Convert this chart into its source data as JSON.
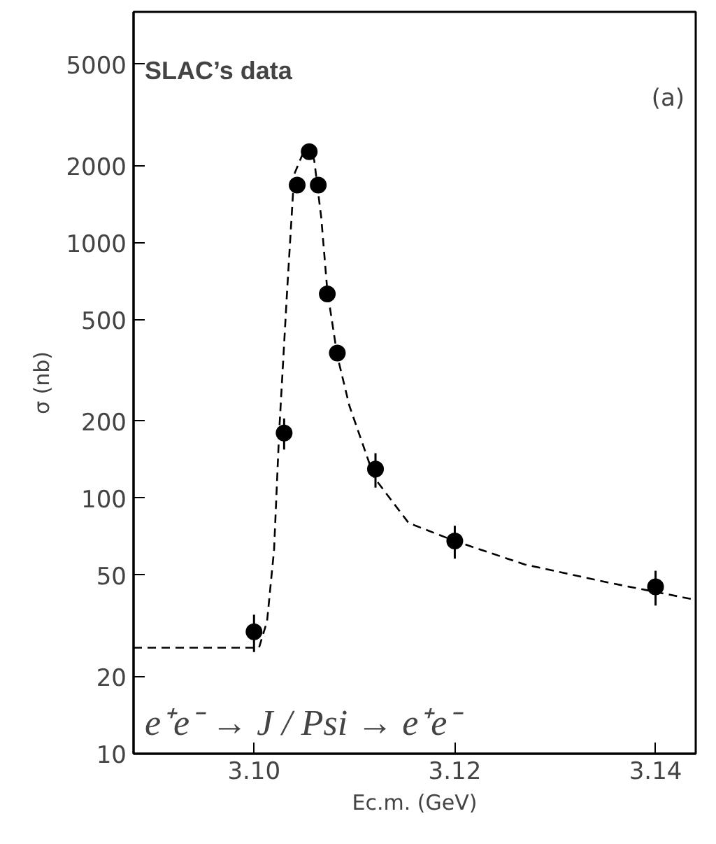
{
  "chart_data": {
    "type": "scatter",
    "xlabel": "Ec.m. (GeV)",
    "ylabel": "σ (nb)",
    "log": "y",
    "grid": false,
    "marker": "circle",
    "xlim": [
      3.088,
      3.144
    ],
    "ylim": [
      10,
      8000
    ],
    "xticks": [
      {
        "value": 3.1,
        "label": "3.10"
      },
      3.12,
      3.14
    ],
    "yticks": [
      10,
      20,
      50,
      100,
      200,
      500,
      1000,
      2000,
      5000
    ],
    "annotations": [
      "SLAC’s data",
      "(a)",
      "e⁺e⁻ → J / Psi → e⁺e⁻"
    ],
    "series": [
      {
        "color": "#000000",
        "x": [
          3.1,
          3.103,
          3.1043,
          3.1055,
          3.1064,
          3.1073,
          3.1083,
          3.1121,
          3.12,
          3.14
        ],
        "values": [
          30,
          180,
          1680,
          2270,
          1680,
          630,
          370,
          130,
          68,
          45
        ],
        "errors": [
          5,
          25,
          null,
          null,
          null,
          null,
          null,
          20,
          10,
          7
        ]
      },
      {
        "type": "line",
        "line_style": "dashed",
        "marker": "none",
        "color": "#000000",
        "x": [
          3.088,
          3.1005,
          3.1013,
          3.102,
          3.1025,
          3.1033,
          3.104,
          3.105,
          3.1055,
          3.106,
          3.1067,
          3.1073,
          3.1083,
          3.1095,
          3.112,
          3.1154,
          3.12,
          3.127,
          3.135,
          3.144
        ],
        "values": [
          26,
          26,
          33,
          63,
          180,
          650,
          1850,
          2300,
          2400,
          2100,
          1250,
          650,
          360,
          230,
          120,
          80,
          68,
          55,
          47,
          40
        ]
      }
    ]
  }
}
